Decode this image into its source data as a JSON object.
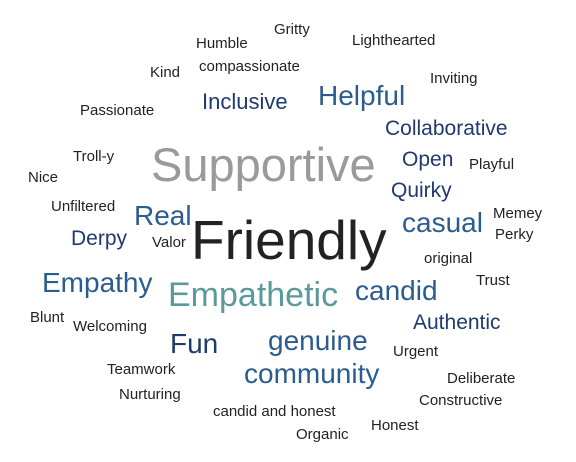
{
  "colors": {
    "dark": "#222222",
    "navy": "#1f3a6e",
    "blue": "#2b5c8e",
    "gray": "#9a9a9a",
    "teal": "#5b9a9a"
  },
  "words": [
    {
      "text": "Gritty",
      "tone": "dark"
    },
    {
      "text": "Humble",
      "tone": "dark"
    },
    {
      "text": "Lighthearted",
      "tone": "dark"
    },
    {
      "text": "compassionate",
      "tone": "dark"
    },
    {
      "text": "Kind",
      "tone": "dark"
    },
    {
      "text": "Inviting",
      "tone": "dark"
    },
    {
      "text": "Helpful",
      "tone": "blue"
    },
    {
      "text": "Inclusive",
      "tone": "navy"
    },
    {
      "text": "Passionate",
      "tone": "dark"
    },
    {
      "text": "Collaborative",
      "tone": "navy"
    },
    {
      "text": "Supportive",
      "tone": "gray"
    },
    {
      "text": "Open",
      "tone": "navy"
    },
    {
      "text": "Troll-y",
      "tone": "dark"
    },
    {
      "text": "Playful",
      "tone": "dark"
    },
    {
      "text": "Nice",
      "tone": "dark"
    },
    {
      "text": "Quirky",
      "tone": "navy"
    },
    {
      "text": "Unfiltered",
      "tone": "dark"
    },
    {
      "text": "Real",
      "tone": "blue"
    },
    {
      "text": "Memey",
      "tone": "dark"
    },
    {
      "text": "casual",
      "tone": "blue"
    },
    {
      "text": "Friendly",
      "tone": "dark"
    },
    {
      "text": "Perky",
      "tone": "dark"
    },
    {
      "text": "Derpy",
      "tone": "navy"
    },
    {
      "text": "Valor",
      "tone": "dark"
    },
    {
      "text": "original",
      "tone": "dark"
    },
    {
      "text": "Empathy",
      "tone": "blue"
    },
    {
      "text": "Trust",
      "tone": "dark"
    },
    {
      "text": "candid",
      "tone": "blue"
    },
    {
      "text": "Empathetic",
      "tone": "teal"
    },
    {
      "text": "Blunt",
      "tone": "dark"
    },
    {
      "text": "Authentic",
      "tone": "navy"
    },
    {
      "text": "Welcoming",
      "tone": "dark"
    },
    {
      "text": "Fun",
      "tone": "navy"
    },
    {
      "text": "genuine",
      "tone": "blue"
    },
    {
      "text": "Urgent",
      "tone": "dark"
    },
    {
      "text": "Teamwork",
      "tone": "dark"
    },
    {
      "text": "community",
      "tone": "blue"
    },
    {
      "text": "Deliberate",
      "tone": "dark"
    },
    {
      "text": "Nurturing",
      "tone": "dark"
    },
    {
      "text": "Constructive",
      "tone": "dark"
    },
    {
      "text": "candid and honest",
      "tone": "dark"
    },
    {
      "text": "Honest",
      "tone": "dark"
    },
    {
      "text": "Organic",
      "tone": "dark"
    }
  ]
}
